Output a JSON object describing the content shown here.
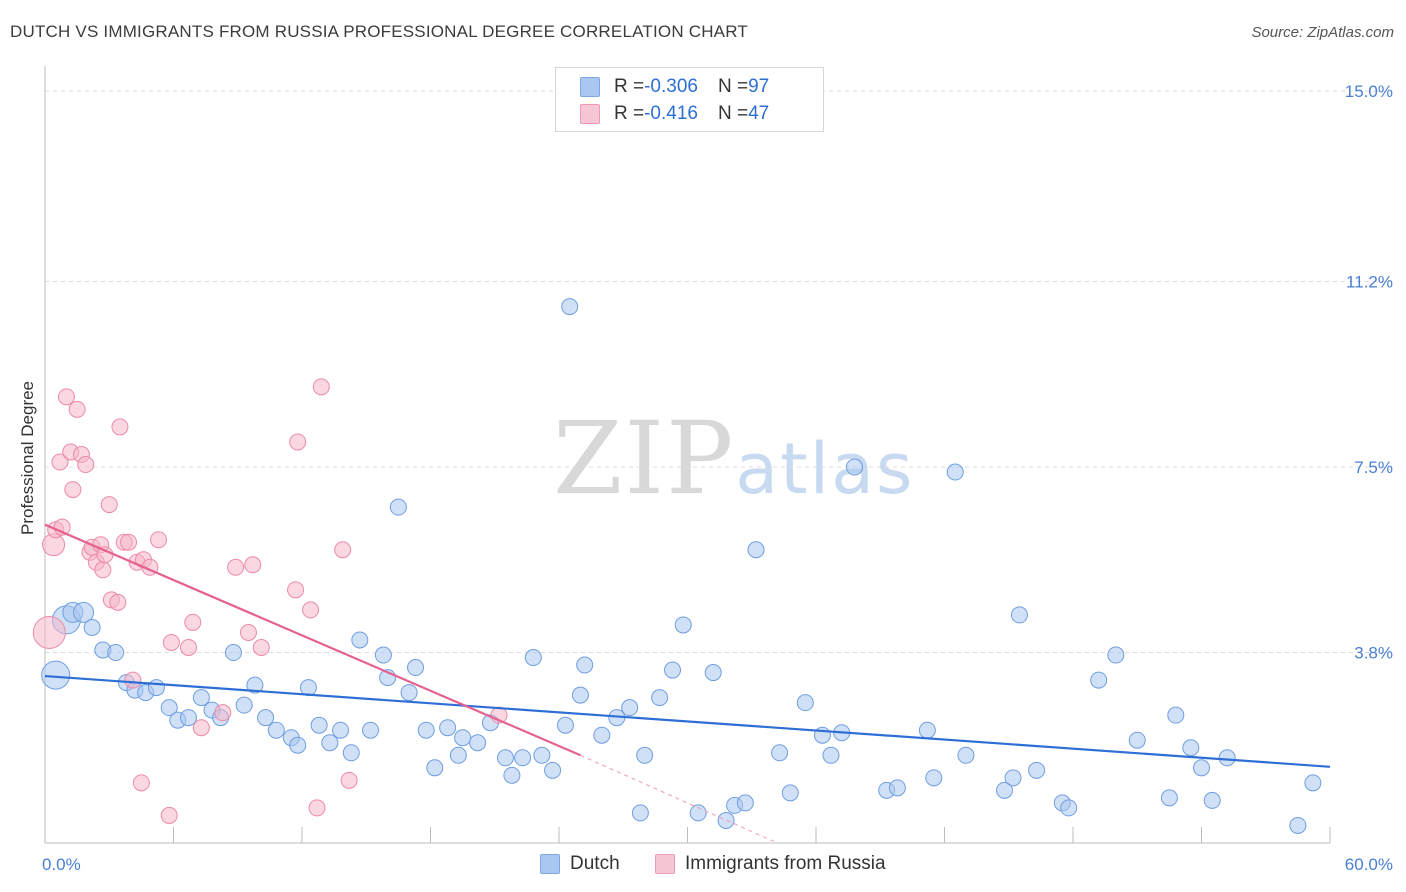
{
  "title": "DUTCH VS IMMIGRANTS FROM RUSSIA PROFESSIONAL DEGREE CORRELATION CHART",
  "source": "Source: ZipAtlas.com",
  "watermark": {
    "zip": "ZIP",
    "atlas": "atlas"
  },
  "legend": {
    "rows": [
      {
        "r_label": "R = ",
        "r_value": "-0.306",
        "n_label": "N = ",
        "n_value": "97",
        "color": "#a9c7f0"
      },
      {
        "r_label": "R = ",
        "r_value": "-0.416",
        "n_label": "N = ",
        "n_value": "47",
        "color": "#f6b6c9"
      }
    ]
  },
  "bottom_legend": [
    {
      "label": "Dutch",
      "color": "#a9c7f0"
    },
    {
      "label": "Immigrants from Russia",
      "color": "#f6b6c9"
    }
  ],
  "chart_data": {
    "type": "scatter",
    "title": "DUTCH VS IMMIGRANTS FROM RUSSIA PROFESSIONAL DEGREE CORRELATION CHART",
    "xlabel": "",
    "ylabel": "Professional Degree",
    "xlim": [
      0,
      60
    ],
    "ylim": [
      0,
      15.5
    ],
    "x_tick_labels": [
      {
        "value": 0,
        "label": "0.0%"
      },
      {
        "value": 60,
        "label": "60.0%"
      }
    ],
    "y_tick_labels": [
      {
        "value": 3.8,
        "label": "3.8%"
      },
      {
        "value": 7.5,
        "label": "7.5%"
      },
      {
        "value": 11.2,
        "label": "11.2%"
      },
      {
        "value": 15.0,
        "label": "15.0%"
      }
    ],
    "x_minor_ticks": [
      6,
      12,
      18,
      24,
      30,
      36,
      42,
      48,
      54,
      60
    ],
    "series": [
      {
        "name": "Dutch",
        "color": "#a9c7f0",
        "stroke": "#6f9ee0",
        "trend": {
          "x0": 0,
          "y0": 3.33,
          "x1": 60,
          "y1": 1.52,
          "color": "#2e6fd6"
        },
        "points": [
          [
            0.5,
            3.35,
            14
          ],
          [
            1.0,
            4.45,
            14
          ],
          [
            1.3,
            4.6,
            10
          ],
          [
            1.8,
            4.6,
            10
          ],
          [
            2.2,
            4.3,
            8
          ],
          [
            2.7,
            3.85,
            8
          ],
          [
            3.3,
            3.8,
            8
          ],
          [
            3.8,
            3.2,
            8
          ],
          [
            4.2,
            3.05,
            8
          ],
          [
            4.7,
            3.0,
            8
          ],
          [
            5.2,
            3.1,
            8
          ],
          [
            5.8,
            2.7,
            8
          ],
          [
            6.2,
            2.45,
            8
          ],
          [
            6.7,
            2.5,
            8
          ],
          [
            7.3,
            2.9,
            8
          ],
          [
            7.8,
            2.65,
            8
          ],
          [
            8.2,
            2.5,
            8
          ],
          [
            8.8,
            3.8,
            8
          ],
          [
            9.3,
            2.75,
            8
          ],
          [
            9.8,
            3.15,
            8
          ],
          [
            10.3,
            2.5,
            8
          ],
          [
            10.8,
            2.25,
            8
          ],
          [
            11.5,
            2.1,
            8
          ],
          [
            11.8,
            1.95,
            8
          ],
          [
            12.3,
            3.1,
            8
          ],
          [
            12.8,
            2.35,
            8
          ],
          [
            13.3,
            2.0,
            8
          ],
          [
            13.8,
            2.25,
            8
          ],
          [
            14.3,
            1.8,
            8
          ],
          [
            14.7,
            4.05,
            8
          ],
          [
            15.2,
            2.25,
            8
          ],
          [
            15.8,
            3.75,
            8
          ],
          [
            16.0,
            3.3,
            8
          ],
          [
            16.5,
            6.7,
            8
          ],
          [
            17.0,
            3.0,
            8
          ],
          [
            17.3,
            3.5,
            8
          ],
          [
            17.8,
            2.25,
            8
          ],
          [
            18.2,
            1.5,
            8
          ],
          [
            18.8,
            2.3,
            8
          ],
          [
            19.3,
            1.75,
            8
          ],
          [
            19.5,
            2.1,
            8
          ],
          [
            20.2,
            2.0,
            8
          ],
          [
            20.8,
            2.4,
            8
          ],
          [
            21.5,
            1.7,
            8
          ],
          [
            21.8,
            1.35,
            8
          ],
          [
            22.3,
            1.7,
            8
          ],
          [
            22.8,
            3.7,
            8
          ],
          [
            23.2,
            1.75,
            8
          ],
          [
            23.7,
            1.45,
            8
          ],
          [
            24.3,
            2.35,
            8
          ],
          [
            24.5,
            10.7,
            8
          ],
          [
            25.0,
            2.95,
            8
          ],
          [
            25.2,
            3.55,
            8
          ],
          [
            26.0,
            2.15,
            8
          ],
          [
            26.7,
            2.5,
            8
          ],
          [
            27.3,
            2.7,
            8
          ],
          [
            27.8,
            0.6,
            8
          ],
          [
            28.0,
            1.75,
            8
          ],
          [
            28.7,
            2.9,
            8
          ],
          [
            29.3,
            3.45,
            8
          ],
          [
            29.8,
            4.35,
            8
          ],
          [
            30.5,
            0.6,
            8
          ],
          [
            31.2,
            3.4,
            8
          ],
          [
            31.8,
            0.45,
            8
          ],
          [
            32.2,
            0.75,
            8
          ],
          [
            32.7,
            0.8,
            8
          ],
          [
            33.2,
            5.85,
            8
          ],
          [
            34.3,
            1.8,
            8
          ],
          [
            34.8,
            1.0,
            8
          ],
          [
            35.5,
            2.8,
            8
          ],
          [
            36.3,
            2.15,
            8
          ],
          [
            36.7,
            1.75,
            8
          ],
          [
            37.2,
            2.2,
            8
          ],
          [
            37.8,
            7.5,
            8
          ],
          [
            39.3,
            1.05,
            8
          ],
          [
            39.8,
            1.1,
            8
          ],
          [
            41.2,
            2.25,
            8
          ],
          [
            41.5,
            1.3,
            8
          ],
          [
            42.5,
            7.4,
            8
          ],
          [
            43.0,
            1.75,
            8
          ],
          [
            44.8,
            1.05,
            8
          ],
          [
            45.2,
            1.3,
            8
          ],
          [
            45.5,
            4.55,
            8
          ],
          [
            46.3,
            1.45,
            8
          ],
          [
            47.5,
            0.8,
            8
          ],
          [
            47.8,
            0.7,
            8
          ],
          [
            49.2,
            3.25,
            8
          ],
          [
            50.0,
            3.75,
            8
          ],
          [
            51.0,
            2.05,
            8
          ],
          [
            52.5,
            0.9,
            8
          ],
          [
            52.8,
            2.55,
            8
          ],
          [
            53.5,
            1.9,
            8
          ],
          [
            54.0,
            1.5,
            8
          ],
          [
            54.5,
            0.85,
            8
          ],
          [
            55.2,
            1.7,
            8
          ],
          [
            58.5,
            0.35,
            8
          ],
          [
            59.2,
            1.2,
            8
          ]
        ]
      },
      {
        "name": "Immigrants from Russia",
        "color": "#f6b6c9",
        "stroke": "#ec8aa8",
        "trend": {
          "x0": 0,
          "y0": 6.35,
          "x1": 25,
          "y1": 1.75,
          "color": "#e4628f",
          "dash_to": {
            "x": 34.2,
            "y": 0.0
          }
        },
        "points": [
          [
            0.2,
            4.2,
            16
          ],
          [
            0.4,
            5.95,
            11
          ],
          [
            0.5,
            6.25,
            8
          ],
          [
            0.7,
            7.6,
            8
          ],
          [
            0.8,
            6.3,
            8
          ],
          [
            1.0,
            8.9,
            8
          ],
          [
            1.2,
            7.8,
            8
          ],
          [
            1.3,
            7.05,
            8
          ],
          [
            1.5,
            8.65,
            8
          ],
          [
            1.7,
            7.75,
            8
          ],
          [
            1.9,
            7.55,
            8
          ],
          [
            2.1,
            5.8,
            8
          ],
          [
            2.2,
            5.9,
            8
          ],
          [
            2.4,
            5.6,
            8
          ],
          [
            2.6,
            5.95,
            8
          ],
          [
            2.7,
            5.45,
            8
          ],
          [
            2.8,
            5.75,
            8
          ],
          [
            3.0,
            6.75,
            8
          ],
          [
            3.1,
            4.85,
            8
          ],
          [
            3.4,
            4.8,
            8
          ],
          [
            3.5,
            8.3,
            8
          ],
          [
            3.7,
            6.0,
            8
          ],
          [
            3.9,
            6.0,
            8
          ],
          [
            4.1,
            3.25,
            8
          ],
          [
            4.3,
            5.6,
            8
          ],
          [
            4.5,
            1.2,
            8
          ],
          [
            4.6,
            5.65,
            8
          ],
          [
            4.9,
            5.5,
            8
          ],
          [
            5.3,
            6.05,
            8
          ],
          [
            5.8,
            0.55,
            8
          ],
          [
            5.9,
            4.0,
            8
          ],
          [
            6.7,
            3.9,
            8
          ],
          [
            6.9,
            4.4,
            8
          ],
          [
            7.3,
            2.3,
            8
          ],
          [
            8.3,
            2.6,
            8
          ],
          [
            8.9,
            5.5,
            8
          ],
          [
            9.5,
            4.2,
            8
          ],
          [
            9.7,
            5.55,
            8
          ],
          [
            10.1,
            3.9,
            8
          ],
          [
            11.7,
            5.05,
            8
          ],
          [
            11.8,
            8.0,
            8
          ],
          [
            12.4,
            4.65,
            8
          ],
          [
            12.7,
            0.7,
            8
          ],
          [
            12.9,
            9.1,
            8
          ],
          [
            13.9,
            5.85,
            8
          ],
          [
            14.2,
            1.25,
            8
          ],
          [
            21.2,
            2.55,
            8
          ]
        ]
      }
    ]
  }
}
